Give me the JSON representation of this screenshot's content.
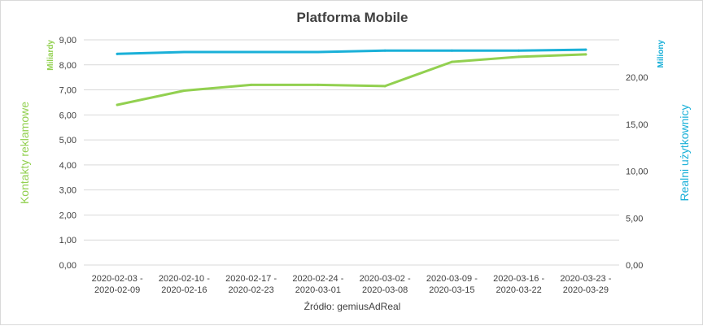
{
  "chart_data": {
    "type": "line",
    "title": "Platforma Mobile",
    "categories": [
      [
        "2020-02-03 -",
        "2020-02-09"
      ],
      [
        "2020-02-10 -",
        "2020-02-16"
      ],
      [
        "2020-02-17 -",
        "2020-02-23"
      ],
      [
        "2020-02-24 -",
        "2020-03-01"
      ],
      [
        "2020-03-02 -",
        "2020-03-08"
      ],
      [
        "2020-03-09 -",
        "2020-03-15"
      ],
      [
        "2020-03-16 -",
        "2020-03-22"
      ],
      [
        "2020-03-23 -",
        "2020-03-29"
      ]
    ],
    "y_left": {
      "label": "Kontakty reklamowe",
      "unit": "Miliardy",
      "ylim": [
        0,
        9
      ],
      "ticks": [
        "0,00",
        "1,00",
        "2,00",
        "3,00",
        "4,00",
        "5,00",
        "6,00",
        "7,00",
        "8,00",
        "9,00"
      ]
    },
    "y_right": {
      "label": "Realni użytkownicy",
      "unit": "Miliony",
      "ylim": [
        0,
        24
      ],
      "ticks": [
        "0,00",
        "5,00",
        "10,00",
        "15,00",
        "20,00"
      ]
    },
    "series": [
      {
        "axis": "left",
        "color": "#92d050",
        "values": [
          6.4,
          6.97,
          7.2,
          7.2,
          7.15,
          8.12,
          8.32,
          8.42
        ]
      },
      {
        "axis": "right",
        "color": "#1ab0d8",
        "values": [
          22.5,
          22.7,
          22.7,
          22.7,
          22.85,
          22.85,
          22.85,
          22.95
        ]
      }
    ],
    "grid": true,
    "source": "Źródło: gemiusAdReal"
  }
}
